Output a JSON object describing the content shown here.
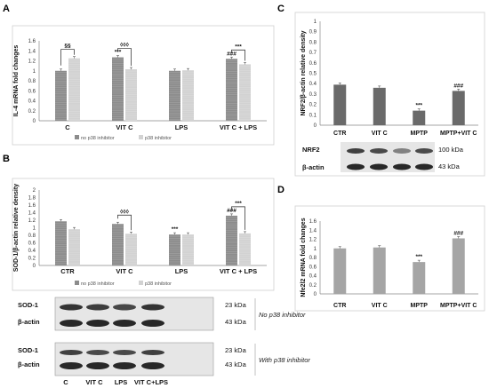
{
  "panels": {
    "A": "A",
    "B": "B",
    "C": "C",
    "D": "D"
  },
  "colors": {
    "dark": "#8c8c8c",
    "light": "#d2d2d2",
    "single": "#6a6a6a",
    "singleD": "#a5a5a5"
  },
  "chart_data": [
    {
      "panel": "A",
      "type": "bar",
      "ylabel": "IL-4 mRNA fold changes",
      "categories": [
        "C",
        "VIT C",
        "LPS",
        "VIT C + LPS"
      ],
      "series": [
        {
          "name": "no p38 inhibitor",
          "values": [
            1.0,
            1.27,
            1.0,
            1.24
          ]
        },
        {
          "name": "p38 inhibitor",
          "values": [
            1.25,
            1.03,
            1.01,
            1.13
          ]
        }
      ],
      "ylim": [
        0,
        1.6
      ],
      "yticks": [
        "0",
        "0.2",
        "0.4",
        "0.6",
        "0.8",
        "1",
        "1.2",
        "1.4",
        "1.6"
      ],
      "legend": "bottom",
      "annotations": [
        {
          "category": 0,
          "text": "§§",
          "bracket": true
        },
        {
          "category": 1,
          "text": "◊◊◊",
          "bracket": true
        },
        {
          "category": 1,
          "series": 0,
          "text": "***"
        },
        {
          "category": 3,
          "series": 0,
          "text": "###"
        },
        {
          "category": 3,
          "text": "***",
          "bracket": true
        }
      ]
    },
    {
      "panel": "B",
      "type": "bar",
      "ylabel": "SOD-1/β-actin relative density",
      "categories": [
        "CTR",
        "VIT C",
        "LPS",
        "VIT C + LPS"
      ],
      "series": [
        {
          "name": "no p38 inhibitor",
          "values": [
            1.17,
            1.1,
            0.82,
            1.32
          ]
        },
        {
          "name": "p38 inhibitor",
          "values": [
            0.96,
            0.84,
            0.82,
            0.85
          ]
        }
      ],
      "ylim": [
        0,
        2
      ],
      "yticks": [
        "0",
        "0.2",
        "0.4",
        "0.6",
        "0.8",
        "1",
        "1.2",
        "1.4",
        "1.6",
        "1.8",
        "2"
      ],
      "legend": "bottom",
      "annotations": [
        {
          "category": 1,
          "text": "◊◊◊",
          "bracket": true
        },
        {
          "category": 2,
          "series": 0,
          "text": "***"
        },
        {
          "category": 3,
          "series": 0,
          "text": "###"
        },
        {
          "category": 3,
          "text": "***",
          "bracket": true
        }
      ]
    },
    {
      "panel": "C",
      "type": "bar",
      "ylabel": "NRF2/β-actin relative density",
      "categories": [
        "CTR",
        "VIT C",
        "MPTP",
        "MPTP+VIT C"
      ],
      "values": [
        0.39,
        0.36,
        0.14,
        0.33
      ],
      "ylim": [
        0,
        1
      ],
      "yticks": [
        "0",
        "0.1",
        "0.2",
        "0.3",
        "0.4",
        "0.5",
        "0.6",
        "0.7",
        "0.8",
        "0.9",
        "1"
      ],
      "annotations": [
        {
          "category": 2,
          "text": "***"
        },
        {
          "category": 3,
          "text": "###"
        }
      ]
    },
    {
      "panel": "D",
      "type": "bar",
      "ylabel": "Nfe2l2 mRNA fold changes",
      "categories": [
        "CTR",
        "VIT C",
        "MPTP",
        "MPTP+VIT C"
      ],
      "values": [
        1.0,
        1.02,
        0.7,
        1.22
      ],
      "ylim": [
        0,
        1.6
      ],
      "yticks": [
        "0",
        "0.2",
        "0.4",
        "0.6",
        "0.8",
        "1",
        "1.2",
        "1.4",
        "1.6"
      ],
      "annotations": [
        {
          "category": 2,
          "text": "***"
        },
        {
          "category": 3,
          "text": "###"
        }
      ]
    }
  ],
  "blots": {
    "b_top": {
      "bands": [
        "SOD-1",
        "β-actin"
      ],
      "sizes": [
        "23 kDa",
        "43 kDa"
      ],
      "note": "No p38 inhibitor"
    },
    "b_bottom": {
      "bands": [
        "SOD-1",
        "β-actin"
      ],
      "sizes": [
        "23 kDa",
        "43 kDa"
      ],
      "note": "With p38 inhibitor"
    },
    "b_lanes": [
      "C",
      "VIT C",
      "LPS",
      "VIT C+LPS"
    ],
    "c": {
      "bands": [
        "NRF2",
        "β-actin"
      ],
      "sizes": [
        "100 kDa",
        "43 kDa"
      ]
    }
  }
}
